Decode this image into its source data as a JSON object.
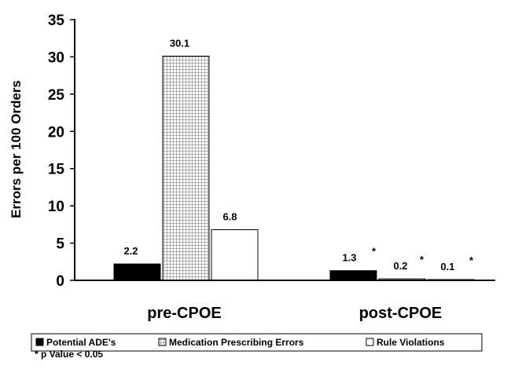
{
  "chart_data": {
    "type": "bar",
    "categories": [
      "pre-CPOE",
      "post-CPOE"
    ],
    "series": [
      {
        "name": "Potential ADE's",
        "values": [
          2.2,
          1.3
        ],
        "labels": [
          "2.2",
          "1.3"
        ],
        "fill": "solid-black"
      },
      {
        "name": "Medication Prescribing Errors",
        "values": [
          30.1,
          0.2
        ],
        "labels": [
          "30.1",
          "0.2"
        ],
        "fill": "crosshatch"
      },
      {
        "name": "Rule Violations",
        "values": [
          6.8,
          0.1
        ],
        "labels": [
          "6.8",
          "0.1"
        ],
        "fill": "white"
      }
    ],
    "significance_markers": [
      [
        false,
        true
      ],
      [
        false,
        true
      ],
      [
        false,
        true
      ]
    ],
    "marker_symbol": "*",
    "ylabel": "Errors per 100 Orders",
    "xlabel": "",
    "title": "",
    "ylim": [
      0,
      35
    ],
    "yticks": [
      0,
      5,
      10,
      15,
      20,
      25,
      30,
      35
    ],
    "grid": false,
    "legend_position": "bottom"
  },
  "footnote": "* p Value < 0.05"
}
